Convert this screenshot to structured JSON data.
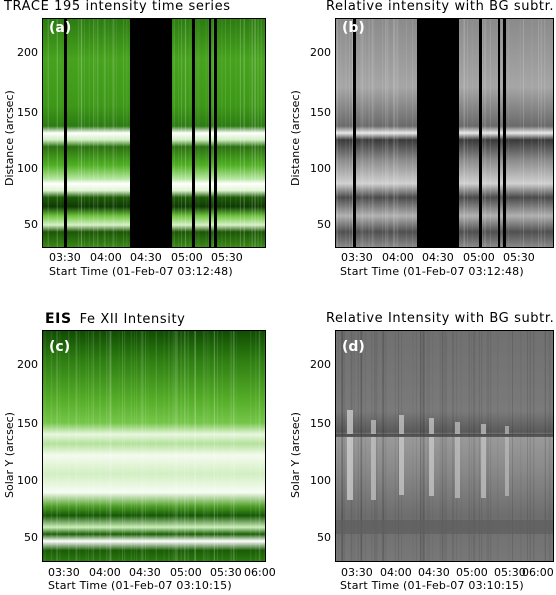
{
  "panels": [
    {
      "id": "a",
      "title": "TRACE 195 intensity time series",
      "label": "(a)",
      "ylabel": "Distance (arcsec)",
      "xlabel": "Start Time (01-Feb-07 03:12:48)",
      "yticks": [
        "200",
        "150",
        "100",
        "50"
      ],
      "xticks": [
        "03:30",
        "04:00",
        "04:30",
        "05:00",
        "05:30"
      ],
      "colormap": "green"
    },
    {
      "id": "b",
      "title": "Relative intensity with BG subtr.",
      "label": "(b)",
      "ylabel": "Distance (arcsec)",
      "xlabel": "Start Time (01-Feb-07 03:12:48)",
      "yticks": [
        "200",
        "150",
        "100",
        "50"
      ],
      "xticks": [
        "03:30",
        "04:00",
        "04:30",
        "05:00",
        "05:30"
      ],
      "colormap": "gray"
    },
    {
      "id": "c",
      "title_bold": "EIS",
      "title": "Fe XII Intensity",
      "label": "(c)",
      "ylabel": "Solar Y (arcsec)",
      "xlabel": "Start Time (01-Feb-07 03:10:15)",
      "yticks": [
        "200",
        "150",
        "100",
        "50"
      ],
      "xticks": [
        "03:30",
        "04:00",
        "04:30",
        "05:00",
        "05:30",
        "06:00"
      ],
      "colormap": "green"
    },
    {
      "id": "d",
      "title": "Relative Intensity with BG subtr.",
      "label": "(d)",
      "ylabel": "Solar Y (arcsec)",
      "xlabel": "Start Time (01-Feb-07 03:10:15)",
      "yticks": [
        "200",
        "150",
        "100",
        "50"
      ],
      "xticks": [
        "03:30",
        "04:00",
        "04:30",
        "05:00",
        "05:30",
        "06:00"
      ],
      "colormap": "gray"
    }
  ],
  "colors": {
    "green_dark": "#0d3d00",
    "green_mid": "#3f9a1a",
    "green_light": "#e6f5d6",
    "gray_mid": "#6e6e6e"
  }
}
